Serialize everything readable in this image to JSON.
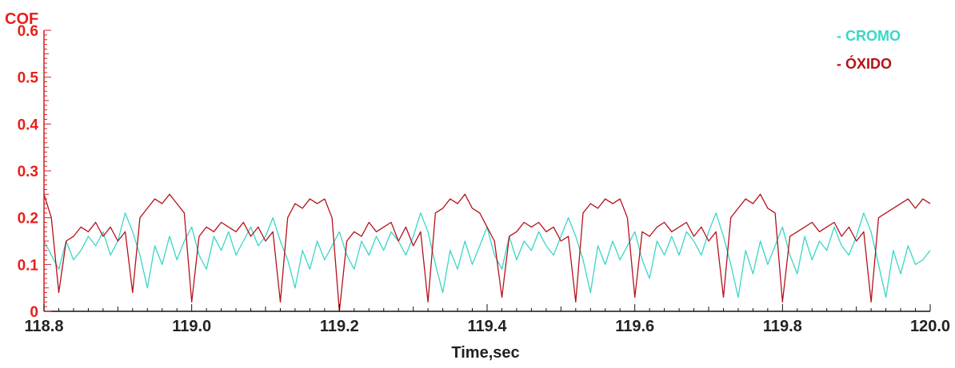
{
  "chart_data": {
    "type": "line",
    "title": "",
    "ylabel": "COF",
    "xlabel": "Time,sec",
    "xlim": [
      118.8,
      120.0
    ],
    "ylim": [
      0,
      0.6
    ],
    "x_ticks": [
      "118.8",
      "119.0",
      "119.2",
      "119.4",
      "119.6",
      "119.8",
      "120.0"
    ],
    "y_ticks": [
      "0",
      "0.1",
      "0.2",
      "0.3",
      "0.4",
      "0.5",
      "0.6"
    ],
    "grid": false,
    "legend_position": "top-right",
    "legend": [
      "- CROMO",
      "- ÓXIDO"
    ],
    "series": [
      {
        "name": "- CROMO",
        "color": "#3ad6c6",
        "x": [
          118.8,
          118.81,
          118.82,
          118.83,
          118.84,
          118.85,
          118.86,
          118.87,
          118.88,
          118.89,
          118.9,
          118.91,
          118.92,
          118.93,
          118.94,
          118.95,
          118.96,
          118.97,
          118.98,
          118.99,
          119.0,
          119.01,
          119.02,
          119.03,
          119.04,
          119.05,
          119.06,
          119.07,
          119.08,
          119.09,
          119.1,
          119.11,
          119.12,
          119.13,
          119.14,
          119.15,
          119.16,
          119.17,
          119.18,
          119.19,
          119.2,
          119.21,
          119.22,
          119.23,
          119.24,
          119.25,
          119.26,
          119.27,
          119.28,
          119.29,
          119.3,
          119.31,
          119.32,
          119.33,
          119.34,
          119.35,
          119.36,
          119.37,
          119.38,
          119.39,
          119.4,
          119.41,
          119.42,
          119.43,
          119.44,
          119.45,
          119.46,
          119.47,
          119.48,
          119.49,
          119.5,
          119.51,
          119.52,
          119.53,
          119.54,
          119.55,
          119.56,
          119.57,
          119.58,
          119.59,
          119.6,
          119.61,
          119.62,
          119.63,
          119.64,
          119.65,
          119.66,
          119.67,
          119.68,
          119.69,
          119.7,
          119.71,
          119.72,
          119.73,
          119.74,
          119.75,
          119.76,
          119.77,
          119.78,
          119.79,
          119.8,
          119.81,
          119.82,
          119.83,
          119.84,
          119.85,
          119.86,
          119.87,
          119.88,
          119.89,
          119.9,
          119.91,
          119.92,
          119.93,
          119.94,
          119.95,
          119.96,
          119.97,
          119.98,
          119.99,
          120.0
        ],
        "values": [
          0.15,
          0.12,
          0.09,
          0.15,
          0.11,
          0.13,
          0.16,
          0.14,
          0.17,
          0.12,
          0.15,
          0.21,
          0.17,
          0.12,
          0.05,
          0.14,
          0.1,
          0.16,
          0.11,
          0.15,
          0.18,
          0.12,
          0.09,
          0.16,
          0.13,
          0.17,
          0.12,
          0.15,
          0.18,
          0.14,
          0.16,
          0.2,
          0.15,
          0.11,
          0.05,
          0.13,
          0.09,
          0.15,
          0.11,
          0.14,
          0.17,
          0.12,
          0.09,
          0.15,
          0.12,
          0.16,
          0.13,
          0.17,
          0.15,
          0.12,
          0.16,
          0.21,
          0.17,
          0.1,
          0.04,
          0.13,
          0.09,
          0.15,
          0.1,
          0.14,
          0.18,
          0.12,
          0.09,
          0.16,
          0.11,
          0.15,
          0.13,
          0.17,
          0.14,
          0.12,
          0.16,
          0.2,
          0.16,
          0.11,
          0.04,
          0.14,
          0.1,
          0.15,
          0.11,
          0.14,
          0.17,
          0.11,
          0.07,
          0.15,
          0.12,
          0.16,
          0.12,
          0.17,
          0.15,
          0.12,
          0.17,
          0.21,
          0.16,
          0.1,
          0.03,
          0.13,
          0.08,
          0.15,
          0.1,
          0.14,
          0.18,
          0.12,
          0.08,
          0.16,
          0.11,
          0.15,
          0.13,
          0.18,
          0.14,
          0.12,
          0.16,
          0.21,
          0.17,
          0.1,
          0.03,
          0.13,
          0.08,
          0.14,
          0.1,
          0.11,
          0.13
        ]
      },
      {
        "name": "- ÓXIDO",
        "color": "#b5121b",
        "x": [
          118.8,
          118.81,
          118.82,
          118.83,
          118.84,
          118.85,
          118.86,
          118.87,
          118.88,
          118.89,
          118.9,
          118.91,
          118.92,
          118.93,
          118.94,
          118.95,
          118.96,
          118.97,
          118.98,
          118.99,
          119.0,
          119.01,
          119.02,
          119.03,
          119.04,
          119.05,
          119.06,
          119.07,
          119.08,
          119.09,
          119.1,
          119.11,
          119.12,
          119.13,
          119.14,
          119.15,
          119.16,
          119.17,
          119.18,
          119.19,
          119.2,
          119.21,
          119.22,
          119.23,
          119.24,
          119.25,
          119.26,
          119.27,
          119.28,
          119.29,
          119.3,
          119.31,
          119.32,
          119.33,
          119.34,
          119.35,
          119.36,
          119.37,
          119.38,
          119.39,
          119.4,
          119.41,
          119.42,
          119.43,
          119.44,
          119.45,
          119.46,
          119.47,
          119.48,
          119.49,
          119.5,
          119.51,
          119.52,
          119.53,
          119.54,
          119.55,
          119.56,
          119.57,
          119.58,
          119.59,
          119.6,
          119.61,
          119.62,
          119.63,
          119.64,
          119.65,
          119.66,
          119.67,
          119.68,
          119.69,
          119.7,
          119.71,
          119.72,
          119.73,
          119.74,
          119.75,
          119.76,
          119.77,
          119.78,
          119.79,
          119.8,
          119.81,
          119.82,
          119.83,
          119.84,
          119.85,
          119.86,
          119.87,
          119.88,
          119.89,
          119.9,
          119.91,
          119.92,
          119.93,
          119.94,
          119.95,
          119.96,
          119.97,
          119.98,
          119.99,
          120.0
        ],
        "values": [
          0.25,
          0.2,
          0.04,
          0.15,
          0.16,
          0.18,
          0.17,
          0.19,
          0.16,
          0.18,
          0.15,
          0.17,
          0.04,
          0.2,
          0.22,
          0.24,
          0.23,
          0.25,
          0.23,
          0.21,
          0.02,
          0.16,
          0.18,
          0.17,
          0.19,
          0.18,
          0.17,
          0.19,
          0.16,
          0.18,
          0.15,
          0.17,
          0.02,
          0.2,
          0.23,
          0.22,
          0.24,
          0.23,
          0.24,
          0.2,
          0.0,
          0.15,
          0.17,
          0.16,
          0.19,
          0.17,
          0.18,
          0.19,
          0.15,
          0.18,
          0.14,
          0.17,
          0.02,
          0.21,
          0.22,
          0.24,
          0.23,
          0.25,
          0.22,
          0.21,
          0.18,
          0.15,
          0.03,
          0.16,
          0.17,
          0.19,
          0.18,
          0.19,
          0.17,
          0.18,
          0.15,
          0.16,
          0.02,
          0.21,
          0.23,
          0.22,
          0.24,
          0.23,
          0.24,
          0.2,
          0.03,
          0.17,
          0.16,
          0.18,
          0.19,
          0.17,
          0.18,
          0.19,
          0.16,
          0.18,
          0.15,
          0.17,
          0.03,
          0.2,
          0.22,
          0.24,
          0.23,
          0.25,
          0.22,
          0.21,
          0.02,
          0.16,
          0.17,
          0.18,
          0.19,
          0.17,
          0.18,
          0.19,
          0.16,
          0.18,
          0.15,
          0.17,
          0.02,
          0.2,
          0.21,
          0.22,
          0.23,
          0.24,
          0.22,
          0.24,
          0.23
        ]
      }
    ]
  }
}
